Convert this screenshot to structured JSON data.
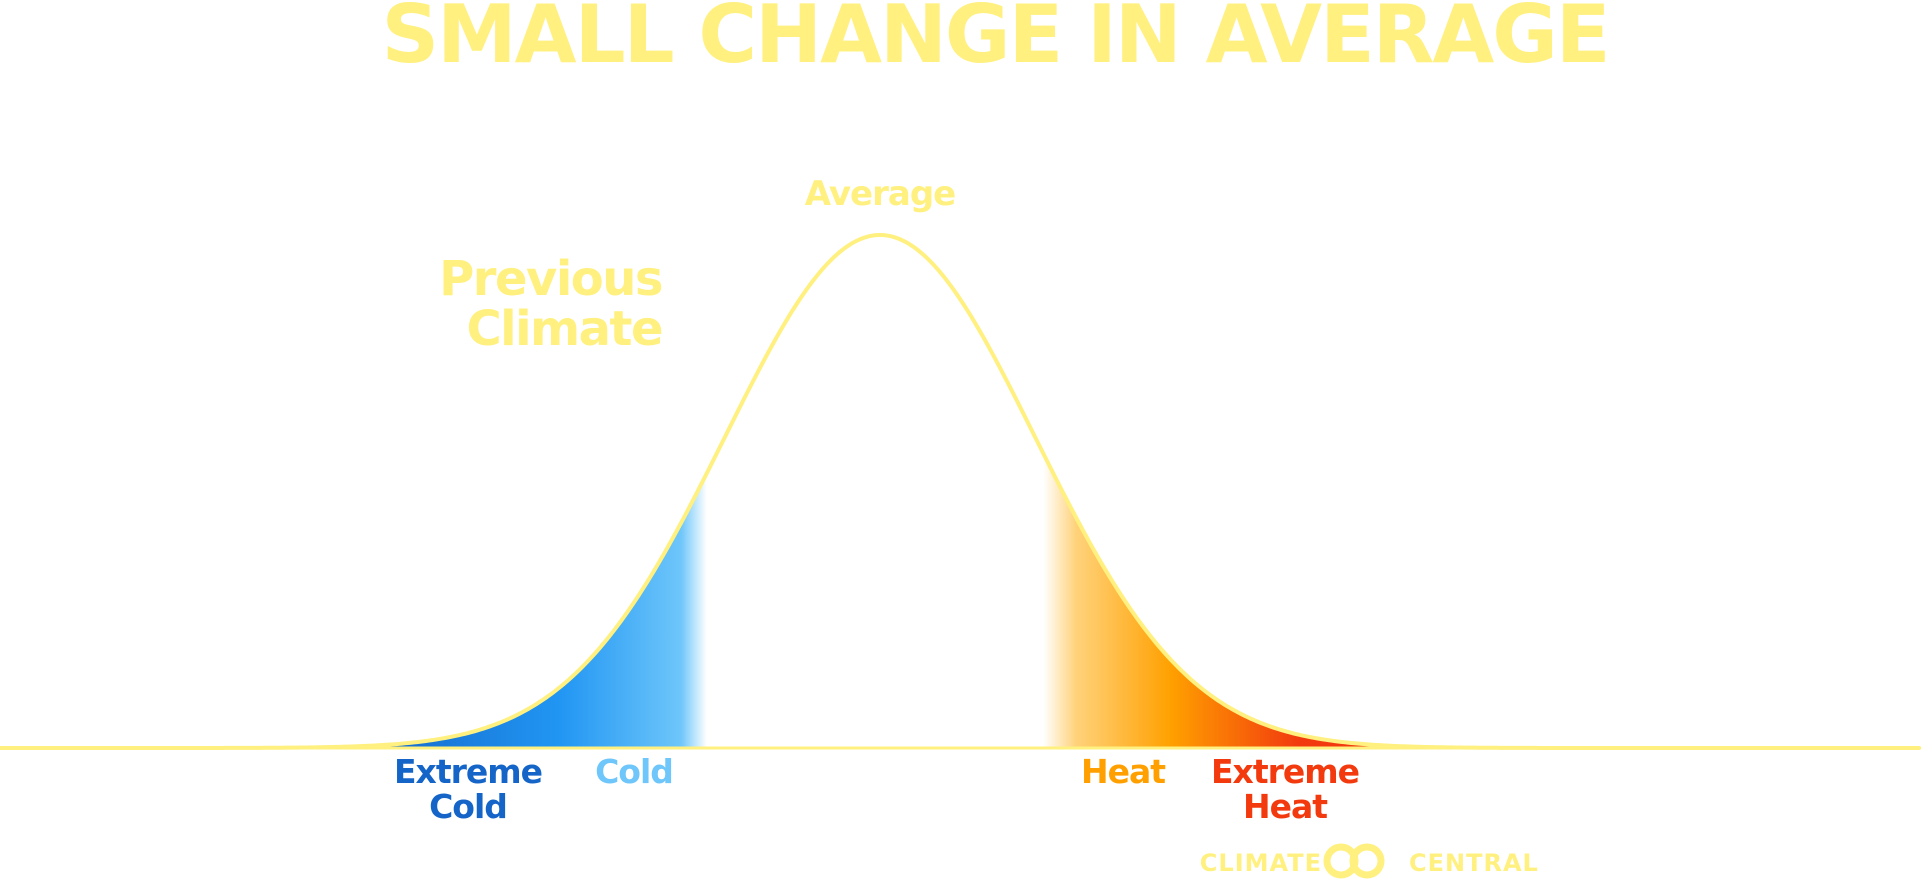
{
  "title": "SMALL CHANGE IN AVERAGE",
  "curve_label": {
    "line1": "Previous",
    "line2": "Climate"
  },
  "peak_label": "Average",
  "regions": {
    "extreme_cold": {
      "line1": "Extreme",
      "line2": "Cold"
    },
    "cold": "Cold",
    "heat": "Heat",
    "extreme_heat": {
      "line1": "Extreme",
      "line2": "Heat"
    }
  },
  "logo": {
    "left": "CLIMATE",
    "right": "CENTRAL"
  },
  "colors": {
    "title": "#FFF07F",
    "curve": "#FFF07F",
    "baseline": "#FFF07F",
    "extreme_cold": "#1565C8",
    "cold": "#6EC6FA",
    "cold_mid": "#2196F3",
    "heat": "#FFA000",
    "extreme_heat": "#F23A0E",
    "heat_light": "#FFD27A"
  }
}
